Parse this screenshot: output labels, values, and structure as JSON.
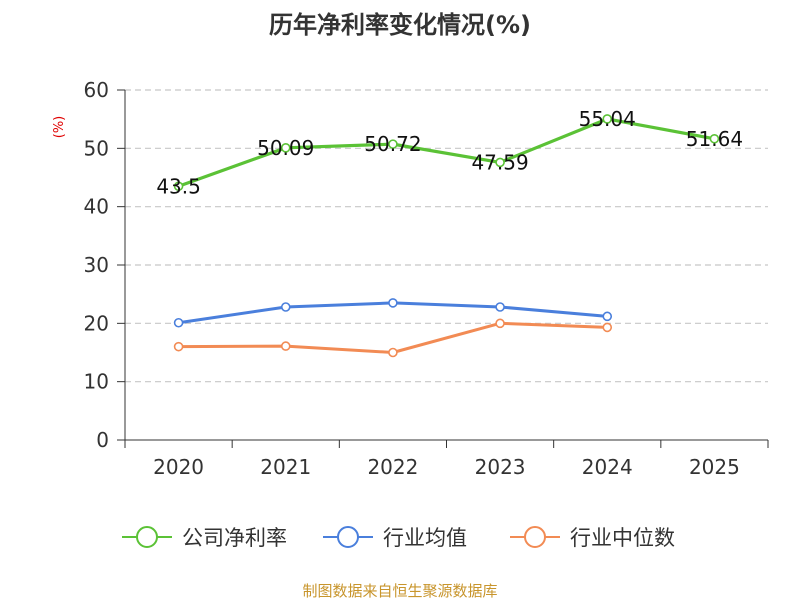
{
  "chart_data": {
    "type": "line",
    "title": "历年净利率变化情况(%)",
    "ylabel": "(%)",
    "xlabel": "",
    "categories": [
      "2020",
      "2021",
      "2022",
      "2023",
      "2024",
      "2025"
    ],
    "ylim": [
      0,
      60
    ],
    "yticks": [
      0,
      10,
      20,
      30,
      40,
      50,
      60
    ],
    "grid": true,
    "legend_position": "bottom",
    "series": [
      {
        "name": "公司净利率",
        "color": "#5bc236",
        "values": [
          43.5,
          50.09,
          50.72,
          47.59,
          55.04,
          51.64
        ],
        "labels": [
          "43.5",
          "50.09",
          "50.72",
          "47.59",
          "55.04",
          "51.64"
        ]
      },
      {
        "name": "行业均值",
        "color": "#4a7fdc",
        "values": [
          20.1,
          22.8,
          23.5,
          22.8,
          21.2,
          null
        ]
      },
      {
        "name": "行业中位数",
        "color": "#f28b54",
        "values": [
          16.0,
          16.1,
          15.0,
          20.0,
          19.3,
          null
        ]
      }
    ],
    "source": "制图数据来自恒生聚源数据库"
  }
}
